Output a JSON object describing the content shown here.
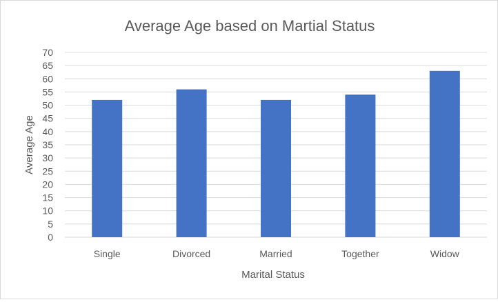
{
  "chart_data": {
    "type": "bar",
    "title": "Average Age based on Martial Status",
    "xlabel": "Marital Status",
    "ylabel": "Average Age",
    "categories": [
      "Single",
      "Divorced",
      "Married",
      "Together",
      "Widow"
    ],
    "values": [
      52,
      56,
      52,
      54,
      63
    ],
    "ylim": [
      0,
      70
    ],
    "yticks": [
      "0",
      "5",
      "10",
      "15",
      "20",
      "25",
      "30",
      "35",
      "40",
      "45",
      "50",
      "55",
      "60",
      "65",
      "70"
    ],
    "grid": true,
    "legend": "none",
    "colors": {
      "bar": "#4472C4",
      "grid": "#d9d9d9",
      "text": "#595959"
    }
  }
}
